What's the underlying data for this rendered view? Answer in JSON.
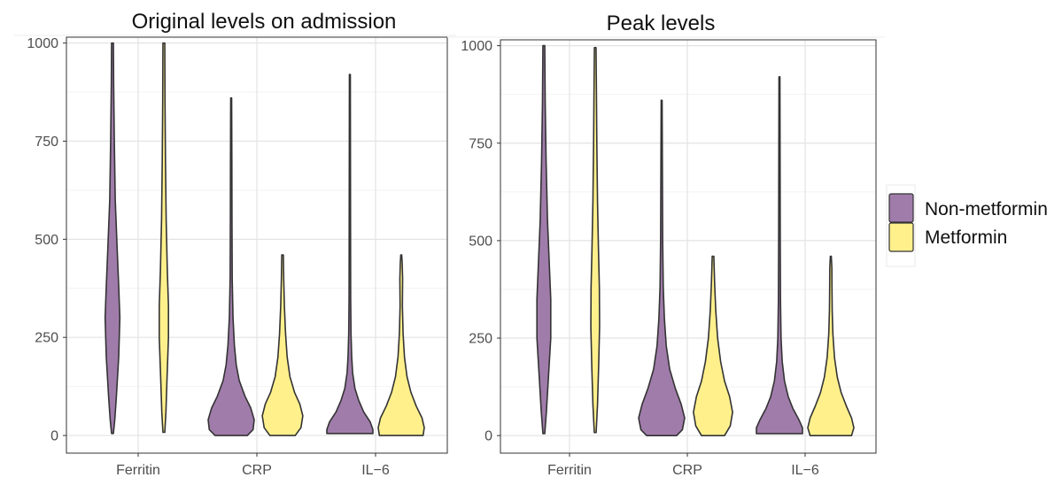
{
  "chart_data": [
    {
      "type": "violin",
      "title": "Original levels on admission",
      "xlabel": "",
      "ylabel": "",
      "categories": [
        "Ferritin",
        "CRP",
        "IL−6"
      ],
      "ylim": [
        -45,
        1015
      ],
      "yticks": [
        0,
        250,
        500,
        750,
        1000
      ],
      "grid": true,
      "series": [
        {
          "name": "Non-metformin",
          "color": "#a07cab",
          "distributions": [
            {
              "category": "Ferritin",
              "min": 5,
              "max": 1000,
              "density": [
                [
                  5,
                  0.04
                ],
                [
                  40,
                  0.1
                ],
                [
                  100,
                  0.17
                ],
                [
                  200,
                  0.27
                ],
                [
                  300,
                  0.32
                ],
                [
                  380,
                  0.27
                ],
                [
                  480,
                  0.2
                ],
                [
                  600,
                  0.12
                ],
                [
                  750,
                  0.08
                ],
                [
                  900,
                  0.05
                ],
                [
                  1000,
                  0.04
                ]
              ]
            },
            {
              "category": "CRP",
              "min": 0,
              "max": 860,
              "density": [
                [
                  0,
                  0.7
                ],
                [
                  15,
                  0.95
                ],
                [
                  40,
                  1.0
                ],
                [
                  70,
                  0.85
                ],
                [
                  100,
                  0.6
                ],
                [
                  140,
                  0.35
                ],
                [
                  180,
                  0.22
                ],
                [
                  230,
                  0.14
                ],
                [
                  300,
                  0.08
                ],
                [
                  400,
                  0.045
                ],
                [
                  550,
                  0.035
                ],
                [
                  700,
                  0.03
                ],
                [
                  860,
                  0.02
                ]
              ]
            },
            {
              "category": "IL−6",
              "min": 5,
              "max": 920,
              "density": [
                [
                  5,
                  1.0
                ],
                [
                  15,
                  1.0
                ],
                [
                  35,
                  0.88
                ],
                [
                  60,
                  0.6
                ],
                [
                  90,
                  0.38
                ],
                [
                  120,
                  0.22
                ],
                [
                  160,
                  0.12
                ],
                [
                  200,
                  0.08
                ],
                [
                  260,
                  0.05
                ],
                [
                  350,
                  0.035
                ],
                [
                  500,
                  0.03
                ],
                [
                  700,
                  0.025
                ],
                [
                  920,
                  0.02
                ]
              ]
            }
          ]
        },
        {
          "name": "Metformin",
          "color": "#fff08c",
          "distributions": [
            {
              "category": "Ferritin",
              "min": 8,
              "max": 1000,
              "density": [
                [
                  8,
                  0.04
                ],
                [
                  60,
                  0.09
                ],
                [
                  150,
                  0.14
                ],
                [
                  250,
                  0.2
                ],
                [
                  330,
                  0.2
                ],
                [
                  420,
                  0.15
                ],
                [
                  550,
                  0.1
                ],
                [
                  700,
                  0.07
                ],
                [
                  850,
                  0.05
                ],
                [
                  1000,
                  0.04
                ]
              ]
            },
            {
              "category": "CRP",
              "min": 0,
              "max": 460,
              "density": [
                [
                  0,
                  0.55
                ],
                [
                  20,
                  0.8
                ],
                [
                  50,
                  0.88
                ],
                [
                  80,
                  0.75
                ],
                [
                  110,
                  0.52
                ],
                [
                  150,
                  0.32
                ],
                [
                  200,
                  0.2
                ],
                [
                  260,
                  0.13
                ],
                [
                  330,
                  0.08
                ],
                [
                  400,
                  0.05
                ],
                [
                  460,
                  0.035
                ]
              ]
            },
            {
              "category": "IL−6",
              "min": 0,
              "max": 460,
              "density": [
                [
                  0,
                  0.95
                ],
                [
                  20,
                  1.0
                ],
                [
                  45,
                  0.9
                ],
                [
                  75,
                  0.65
                ],
                [
                  110,
                  0.42
                ],
                [
                  150,
                  0.25
                ],
                [
                  200,
                  0.14
                ],
                [
                  260,
                  0.08
                ],
                [
                  330,
                  0.05
                ],
                [
                  400,
                  0.06
                ],
                [
                  440,
                  0.04
                ],
                [
                  460,
                  0.02
                ]
              ]
            }
          ]
        }
      ]
    },
    {
      "type": "violin",
      "title": "Peak levels",
      "xlabel": "",
      "ylabel": "",
      "categories": [
        "Ferritin",
        "CRP",
        "IL−6"
      ],
      "ylim": [
        -45,
        1015
      ],
      "yticks": [
        0,
        250,
        500,
        750,
        1000
      ],
      "grid": true,
      "series": [
        {
          "name": "Non-metformin",
          "color": "#a07cab",
          "distributions": [
            {
              "category": "Ferritin",
              "min": 5,
              "max": 1000,
              "density": [
                [
                  5,
                  0.04
                ],
                [
                  60,
                  0.11
                ],
                [
                  150,
                  0.2
                ],
                [
                  250,
                  0.3
                ],
                [
                  350,
                  0.3
                ],
                [
                  450,
                  0.23
                ],
                [
                  550,
                  0.16
                ],
                [
                  700,
                  0.1
                ],
                [
                  850,
                  0.06
                ],
                [
                  1000,
                  0.04
                ]
              ]
            },
            {
              "category": "CRP",
              "min": 0,
              "max": 860,
              "density": [
                [
                  0,
                  0.65
                ],
                [
                  15,
                  0.9
                ],
                [
                  45,
                  1.0
                ],
                [
                  80,
                  0.85
                ],
                [
                  120,
                  0.6
                ],
                [
                  170,
                  0.35
                ],
                [
                  230,
                  0.2
                ],
                [
                  300,
                  0.12
                ],
                [
                  380,
                  0.07
                ],
                [
                  500,
                  0.045
                ],
                [
                  650,
                  0.035
                ],
                [
                  860,
                  0.02
                ]
              ]
            },
            {
              "category": "IL−6",
              "min": 5,
              "max": 920,
              "density": [
                [
                  5,
                  1.0
                ],
                [
                  20,
                  1.0
                ],
                [
                  40,
                  0.85
                ],
                [
                  70,
                  0.58
                ],
                [
                  100,
                  0.38
                ],
                [
                  140,
                  0.22
                ],
                [
                  190,
                  0.12
                ],
                [
                  250,
                  0.07
                ],
                [
                  350,
                  0.045
                ],
                [
                  500,
                  0.035
                ],
                [
                  700,
                  0.028
                ],
                [
                  920,
                  0.02
                ]
              ]
            }
          ]
        },
        {
          "name": "Metformin",
          "color": "#fff08c",
          "distributions": [
            {
              "category": "Ferritin",
              "min": 8,
              "max": 995,
              "density": [
                [
                  8,
                  0.04
                ],
                [
                  80,
                  0.1
                ],
                [
                  180,
                  0.15
                ],
                [
                  280,
                  0.19
                ],
                [
                  380,
                  0.18
                ],
                [
                  480,
                  0.14
                ],
                [
                  600,
                  0.1
                ],
                [
                  750,
                  0.07
                ],
                [
                  900,
                  0.05
                ],
                [
                  995,
                  0.035
                ]
              ]
            },
            {
              "category": "CRP",
              "min": 0,
              "max": 460,
              "density": [
                [
                  0,
                  0.5
                ],
                [
                  25,
                  0.75
                ],
                [
                  60,
                  0.85
                ],
                [
                  100,
                  0.72
                ],
                [
                  140,
                  0.5
                ],
                [
                  190,
                  0.33
                ],
                [
                  250,
                  0.2
                ],
                [
                  320,
                  0.12
                ],
                [
                  390,
                  0.07
                ],
                [
                  460,
                  0.035
                ]
              ]
            },
            {
              "category": "IL−6",
              "min": 0,
              "max": 460,
              "density": [
                [
                  0,
                  0.9
                ],
                [
                  20,
                  1.0
                ],
                [
                  45,
                  0.9
                ],
                [
                  75,
                  0.68
                ],
                [
                  110,
                  0.45
                ],
                [
                  150,
                  0.28
                ],
                [
                  200,
                  0.16
                ],
                [
                  260,
                  0.09
                ],
                [
                  320,
                  0.06
                ],
                [
                  380,
                  0.05
                ],
                [
                  430,
                  0.045
                ],
                [
                  460,
                  0.02
                ]
              ]
            }
          ]
        }
      ]
    }
  ]
}
